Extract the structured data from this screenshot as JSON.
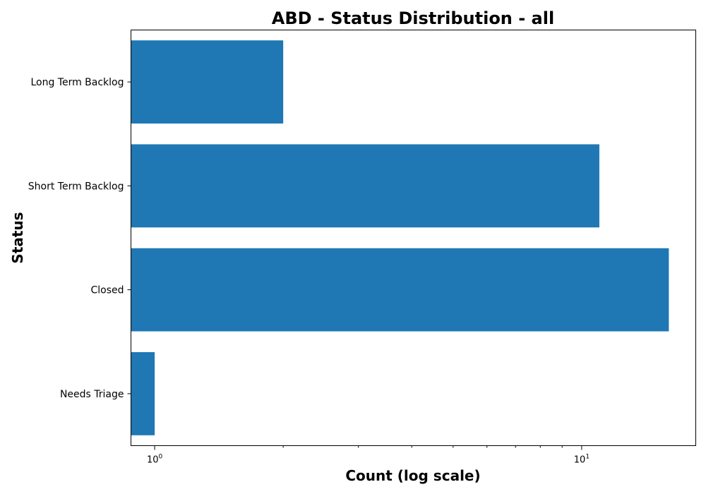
{
  "chart_data": {
    "type": "bar",
    "orientation": "horizontal",
    "title": "ABD - Status Distribution - all",
    "xlabel": "Count (log scale)",
    "ylabel": "Status",
    "xscale": "log",
    "xlim": [
      0.88,
      18.5
    ],
    "x_ticks": [
      {
        "base": "10",
        "exp": "0",
        "value": 1
      },
      {
        "base": "10",
        "exp": "1",
        "value": 10
      }
    ],
    "categories": [
      "Long Term Backlog",
      "Short Term Backlog",
      "Closed",
      "Needs Triage"
    ],
    "values": [
      2,
      11,
      16,
      1
    ],
    "bar_color": "#1f77b4",
    "grid": false,
    "legend": "none"
  }
}
